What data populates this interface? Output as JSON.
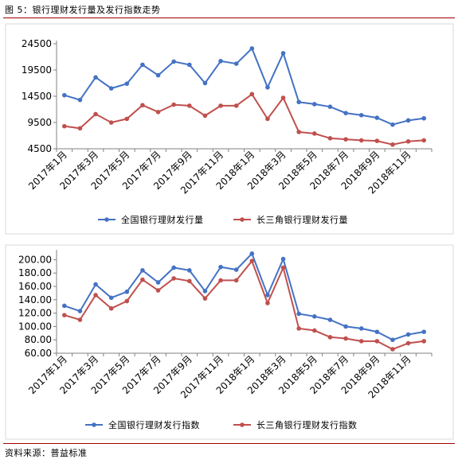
{
  "figure_title": "图 5：银行理财发行量及发行指数走势",
  "source_note": "资料来源：普益标准",
  "colors": {
    "blue": "#4472c4",
    "red": "#c0504d",
    "axis": "#808080",
    "frame": "#d9d9d9",
    "rule": "#a00000"
  },
  "chart_data": [
    {
      "type": "line",
      "title": "",
      "xlabel": "",
      "ylabel": "",
      "x": [
        "2017年1月",
        "2017年2月",
        "2017年3月",
        "2017年4月",
        "2017年5月",
        "2017年6月",
        "2017年7月",
        "2017年8月",
        "2017年9月",
        "2017年10月",
        "2017年11月",
        "2017年12月",
        "2018年1月",
        "2018年2月",
        "2018年3月",
        "2018年4月",
        "2018年5月",
        "2018年6月",
        "2018年7月",
        "2018年8月",
        "2018年9月",
        "2018年10月",
        "2018年11月",
        "2018年12月"
      ],
      "x_tick_labels": [
        "2017年1月",
        "2017年3月",
        "2017年5月",
        "2017年7月",
        "2017年9月",
        "2017年11月",
        "2018年1月",
        "2018年3月",
        "2018年5月",
        "2018年7月",
        "2018年9月",
        "2018年11月"
      ],
      "y_ticks": [
        "4500",
        "9500",
        "14500",
        "19500",
        "24500"
      ],
      "ylim": [
        4500,
        24500
      ],
      "grid": false,
      "legend": "bottom",
      "series": [
        {
          "name": "全国银行理财发行量",
          "color": "#4472c4",
          "values": [
            14700,
            13800,
            18100,
            16000,
            16900,
            20500,
            18500,
            21100,
            20500,
            17000,
            21200,
            20700,
            23600,
            16200,
            22700,
            13400,
            13000,
            12500,
            11300,
            10900,
            10400,
            9100,
            9900,
            10300
          ]
        },
        {
          "name": "长三角银行理财发行量",
          "color": "#c0504d",
          "values": [
            8800,
            8400,
            11100,
            9500,
            10200,
            12800,
            11500,
            12900,
            12700,
            10800,
            12700,
            12700,
            14900,
            10200,
            14200,
            7700,
            7400,
            6500,
            6300,
            6100,
            6000,
            5300,
            5900,
            6100
          ]
        }
      ]
    },
    {
      "type": "line",
      "title": "",
      "xlabel": "",
      "ylabel": "",
      "x": [
        "2017年1月",
        "2017年2月",
        "2017年3月",
        "2017年4月",
        "2017年5月",
        "2017年6月",
        "2017年7月",
        "2017年8月",
        "2017年9月",
        "2017年10月",
        "2017年11月",
        "2017年12月",
        "2018年1月",
        "2018年2月",
        "2018年3月",
        "2018年4月",
        "2018年5月",
        "2018年6月",
        "2018年7月",
        "2018年8月",
        "2018年9月",
        "2018年10月",
        "2018年11月",
        "2018年12月"
      ],
      "x_tick_labels": [
        "2017年1月",
        "2017年3月",
        "2017年5月",
        "2017年7月",
        "2017年9月",
        "2017年11月",
        "2018年1月",
        "2018年3月",
        "2018年5月",
        "2018年7月",
        "2018年9月",
        "2018年11月"
      ],
      "y_ticks": [
        "60.00",
        "80.00",
        "100.00",
        "120.00",
        "140.00",
        "160.00",
        "180.00",
        "200.00"
      ],
      "ylim": [
        60,
        210
      ],
      "grid": false,
      "legend": "bottom",
      "series": [
        {
          "name": "全国银行理财发行指数",
          "color": "#4472c4",
          "values": [
            131,
            123,
            163,
            143,
            152,
            184,
            166,
            188,
            184,
            153,
            189,
            185,
            209,
            147,
            201,
            119,
            115,
            110,
            100,
            97,
            92,
            80,
            88,
            92
          ]
        },
        {
          "name": "长三角银行理财发行指数",
          "color": "#c0504d",
          "values": [
            117,
            110,
            147,
            127,
            138,
            170,
            154,
            172,
            168,
            142,
            169,
            169,
            198,
            135,
            188,
            97,
            94,
            84,
            82,
            78,
            78,
            66,
            75,
            78
          ]
        }
      ]
    }
  ]
}
